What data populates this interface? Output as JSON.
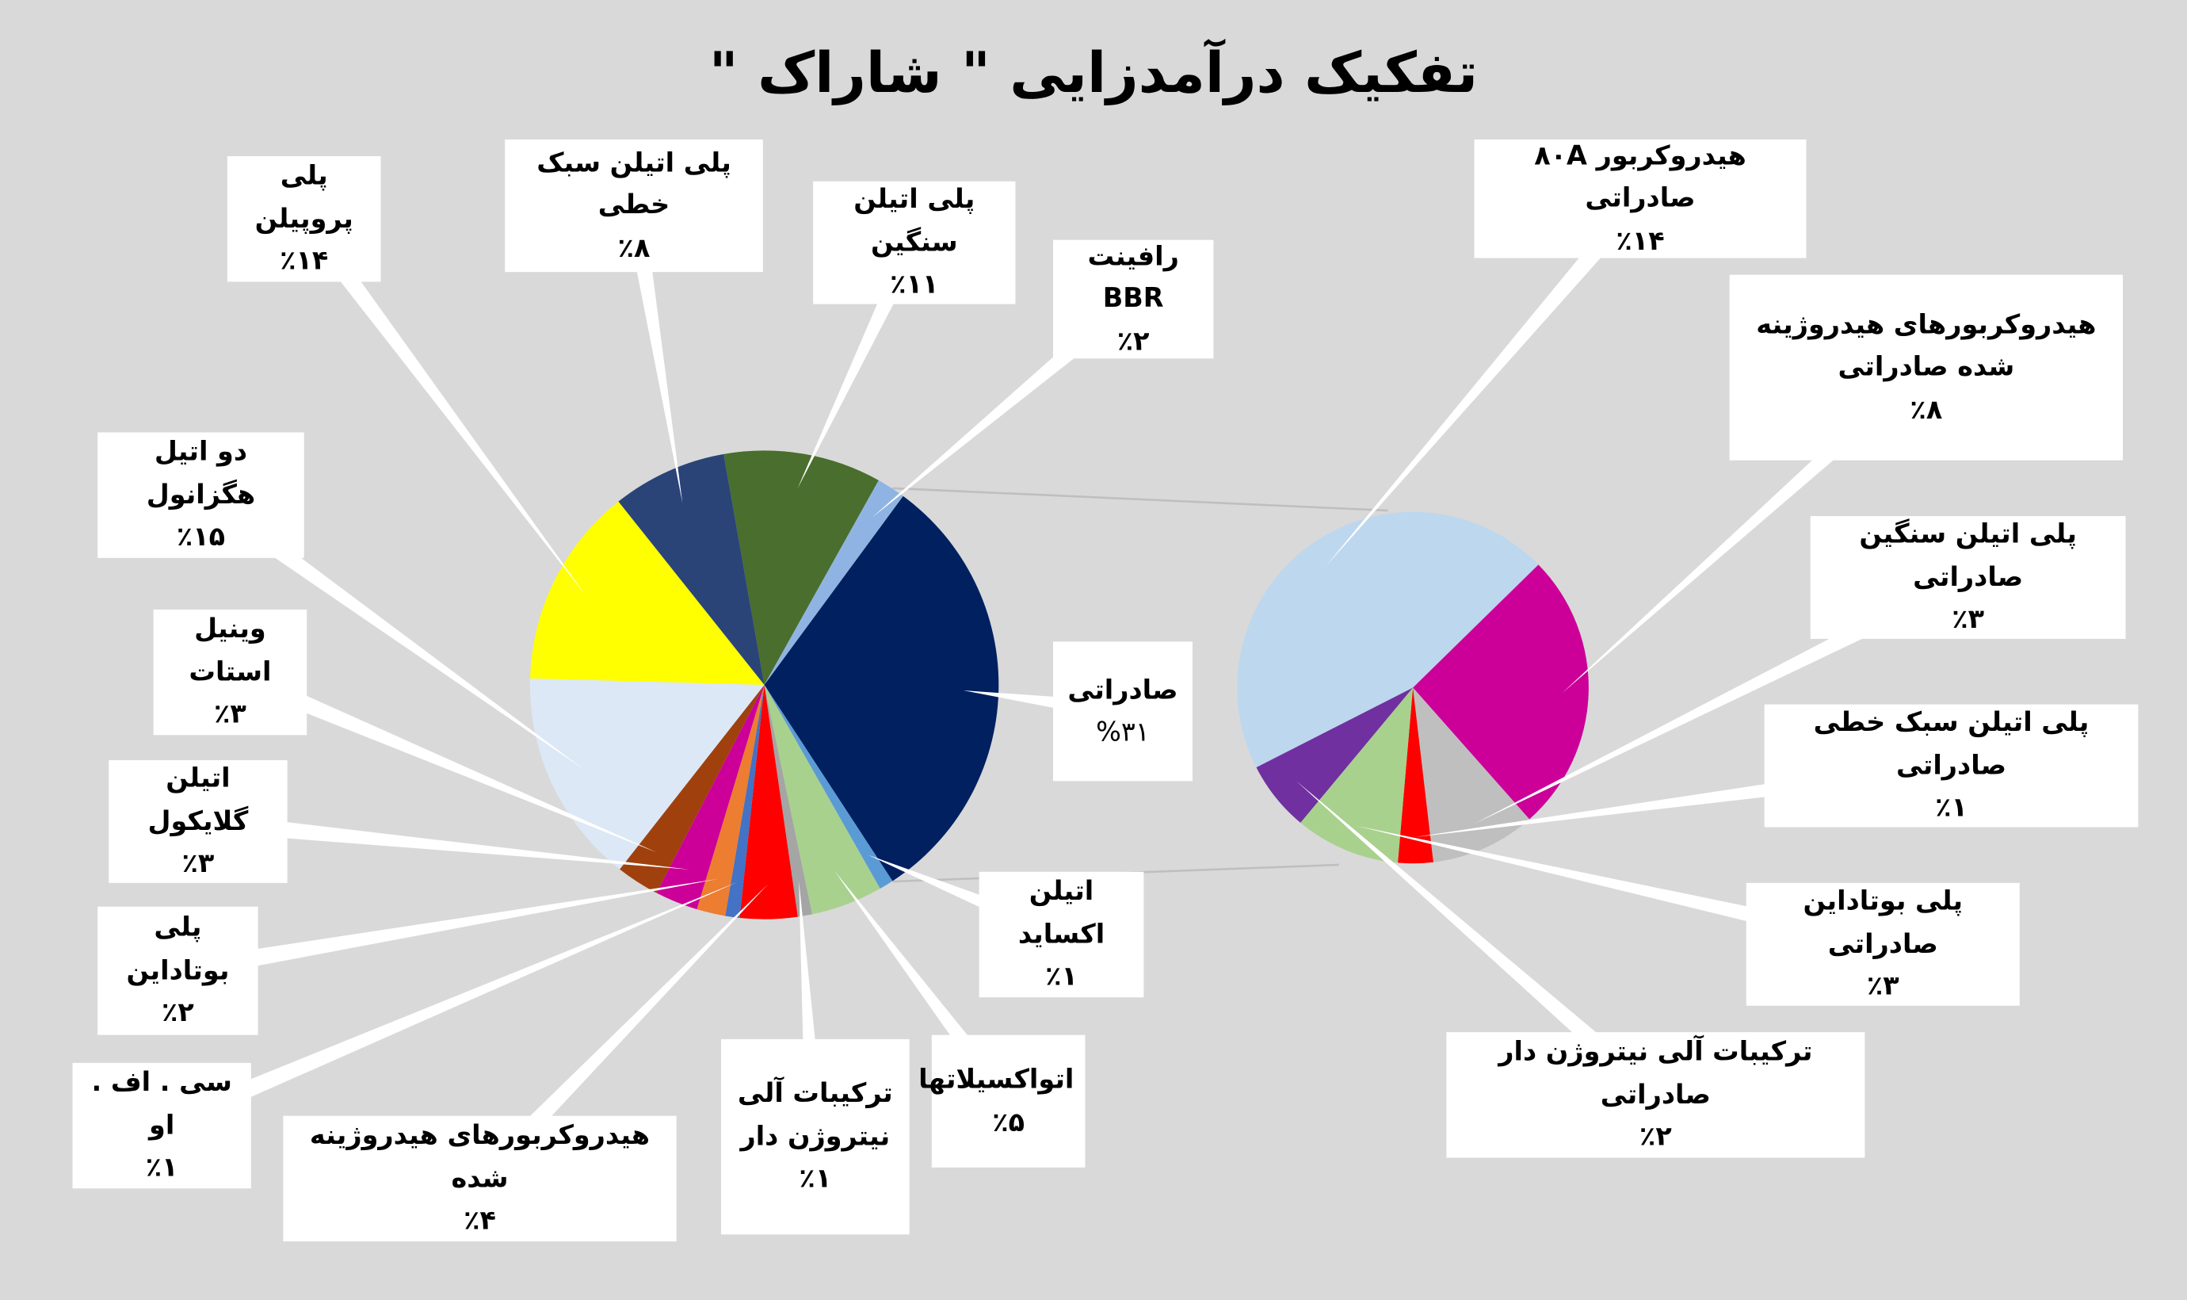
{
  "chart_data": [
    {
      "type": "pie",
      "title": "تفکیک درآمدزایی \" شاراک \"",
      "categories": [
        "پلی اتیلن سنگین",
        "رافینت BBR",
        "صادراتی",
        "اتیلن اکساید",
        "اتواکسیلاتها",
        "ترکیبات آلی نیتروژن دار",
        "هیدروکربورهای هیدروژینه شده",
        "سی . اف . او",
        "پلی بوتاداین",
        "اتیلن گلایکول",
        "وینیل استات",
        "دو اتیل هگزانول",
        "پلی پروپیلن",
        "پلی اتیلن سبک خطی"
      ],
      "values": [
        11,
        2,
        31,
        1,
        5,
        1,
        4,
        1,
        2,
        3,
        3,
        15,
        14,
        8
      ],
      "value_labels": [
        "٪۱۱",
        "٪۲",
        "٣١%",
        "٪۱",
        "٪۵",
        "٪۱",
        "٪۴",
        "٪۱",
        "٪۲",
        "٪۳",
        "٪۳",
        "٪۱۵",
        "٪۱۴",
        "٪۸"
      ],
      "colors": [
        "#4a6e2d",
        "#8fb4e3",
        "#002060",
        "#5b9bd5",
        "#a9d18e",
        "#a5a5a5",
        "#ff0000",
        "#4472c4",
        "#ed7d31",
        "#cc0099",
        "#a0410d",
        "#dce8f6",
        "#ffff00",
        "#2a4478"
      ]
    },
    {
      "type": "pie",
      "categories": [
        "هیدروکربور ۸۰A صادراتی",
        "هیدروکربورهای هیدروژینه شده صادراتی",
        "پلی اتیلن سنگین صادراتی",
        "پلی اتیلن سبک خطی صادراتی",
        "پلی بوتاداین صادراتی",
        "ترکیبات آلی نیتروژن دار صادراتی"
      ],
      "values": [
        14,
        8,
        3,
        1,
        3,
        2
      ],
      "value_labels": [
        "٪۱۴",
        "٪۸",
        "٪۳",
        "٪۱",
        "٪۳",
        "٪۲"
      ],
      "colors": [
        "#bdd7ee",
        "#cc0099",
        "#bfbfbf",
        "#ff0000",
        "#a9d18e",
        "#7030a0"
      ]
    }
  ]
}
